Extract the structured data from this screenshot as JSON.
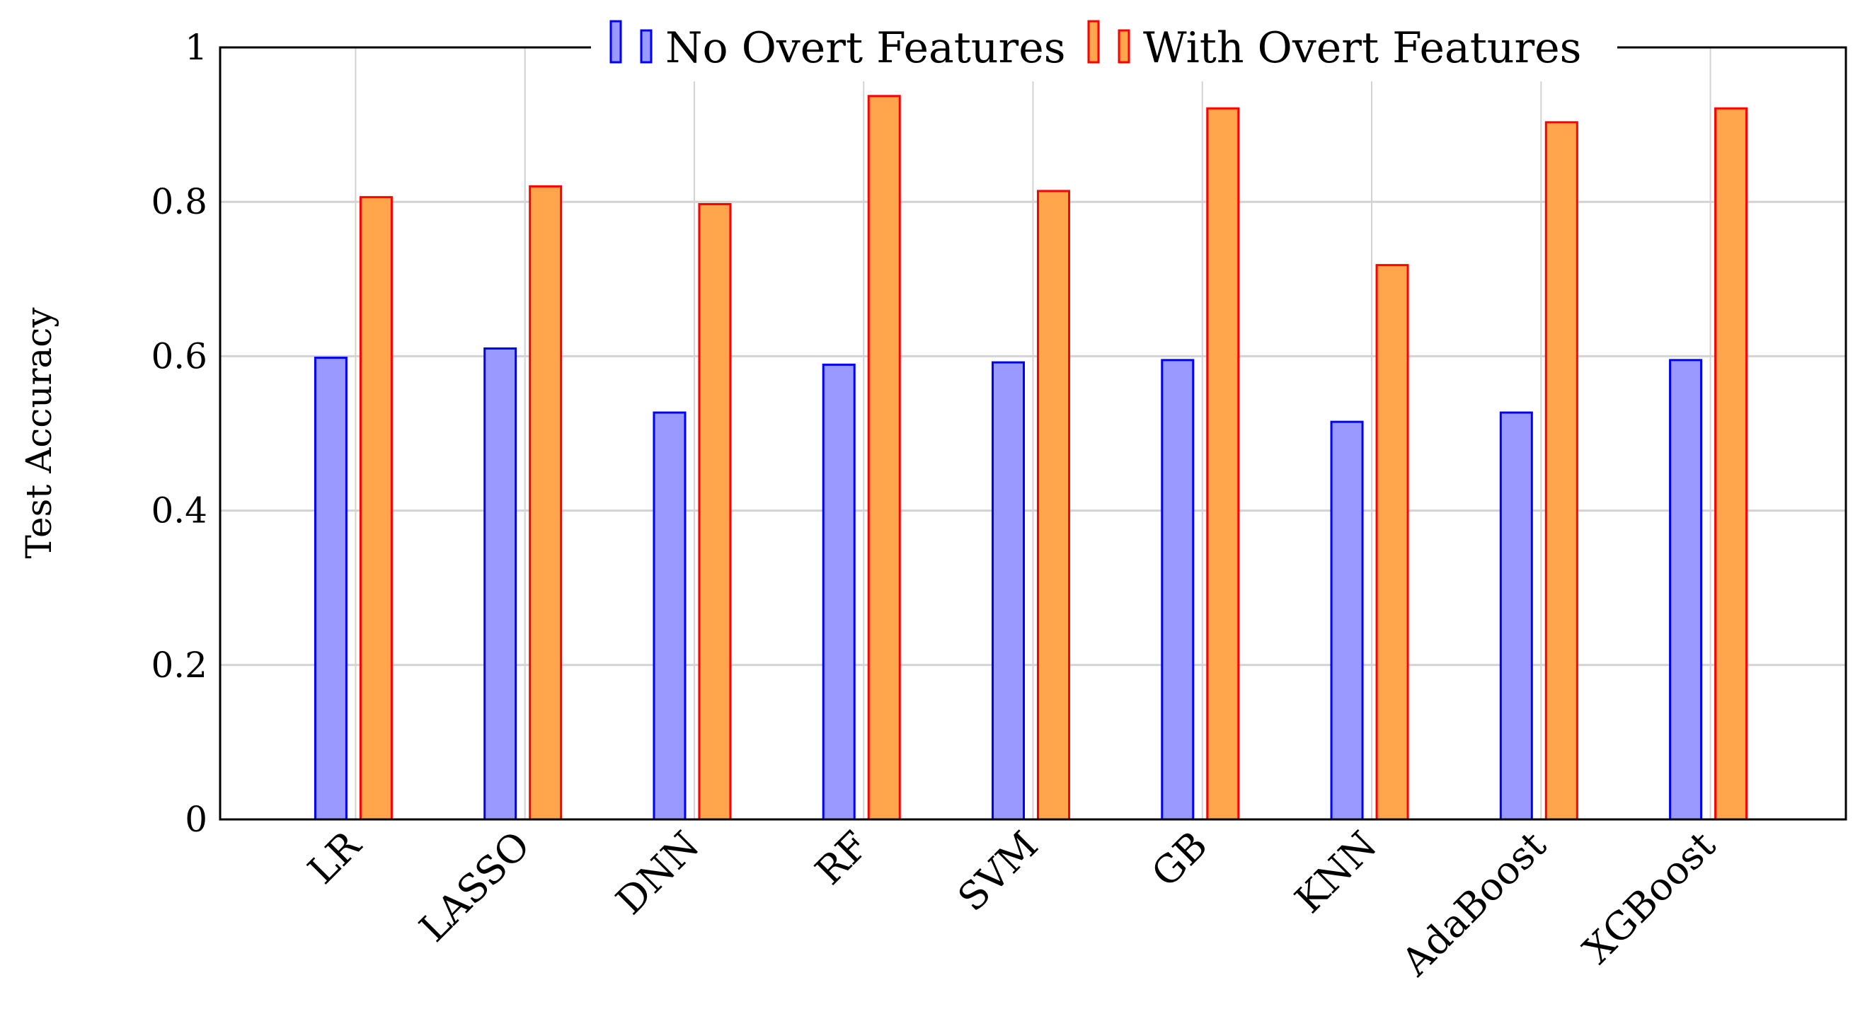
{
  "chart_data": {
    "type": "bar",
    "title": "",
    "xlabel": "",
    "ylabel": "Test Accuracy",
    "ylim": [
      0,
      1
    ],
    "yticks": [
      "0",
      "0.2",
      "0.4",
      "0.6",
      "0.8",
      "1"
    ],
    "grid": true,
    "legend_position": "top-center",
    "categories": [
      "LR",
      "LASSO",
      "DNN",
      "RF",
      "SVM",
      "GB",
      "KNN",
      "AdaBoost",
      "XGBoost"
    ],
    "series": [
      {
        "name": "No Overt Features",
        "fill": "#9999ff",
        "stroke": "#0000ff",
        "values": [
          0.598,
          0.61,
          0.527,
          0.589,
          0.592,
          0.595,
          0.515,
          0.527,
          0.595
        ]
      },
      {
        "name": "With Overt Features",
        "fill": "#ffa64d",
        "stroke": "#ff0000",
        "values": [
          0.806,
          0.82,
          0.797,
          0.937,
          0.814,
          0.921,
          0.718,
          0.903,
          0.921
        ]
      }
    ]
  }
}
